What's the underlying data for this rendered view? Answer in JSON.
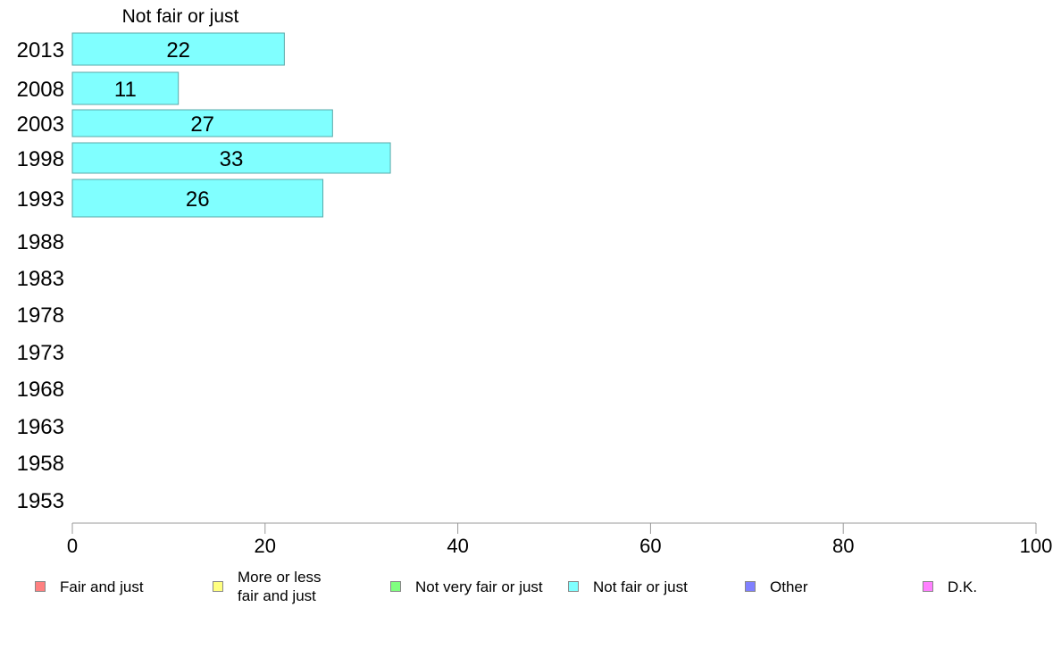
{
  "chart_data": {
    "type": "bar",
    "orientation": "horizontal",
    "title": "Not fair or just",
    "categories": [
      "2013",
      "2008",
      "2003",
      "1998",
      "1993",
      "1988",
      "1983",
      "1978",
      "1973",
      "1968",
      "1963",
      "1958",
      "1953"
    ],
    "series": [
      {
        "name": "Not fair or just",
        "values": [
          22,
          11,
          27,
          33,
          26,
          null,
          null,
          null,
          null,
          null,
          null,
          null,
          null
        ]
      }
    ],
    "value_labels": [
      "22",
      "11",
      "27",
      "33",
      "26"
    ],
    "xlim": [
      0,
      100
    ],
    "xticks": [
      0,
      20,
      40,
      60,
      80,
      100
    ],
    "xlabel": "",
    "ylabel": "",
    "grid": false,
    "legend_position": "bottom",
    "bar_color": "#80ffff",
    "bar_edge_color": "#5aa8a8"
  },
  "legend": [
    {
      "label": "Fair and just",
      "color": "#ff8080"
    },
    {
      "label": "More or less\nfair and just",
      "color": "#ffff80"
    },
    {
      "label": "Not very fair or just",
      "color": "#80ff80"
    },
    {
      "label": "Not fair or just",
      "color": "#80ffff"
    },
    {
      "label": "Other",
      "color": "#8080ff"
    },
    {
      "label": "D.K.",
      "color": "#ff80ff"
    }
  ]
}
